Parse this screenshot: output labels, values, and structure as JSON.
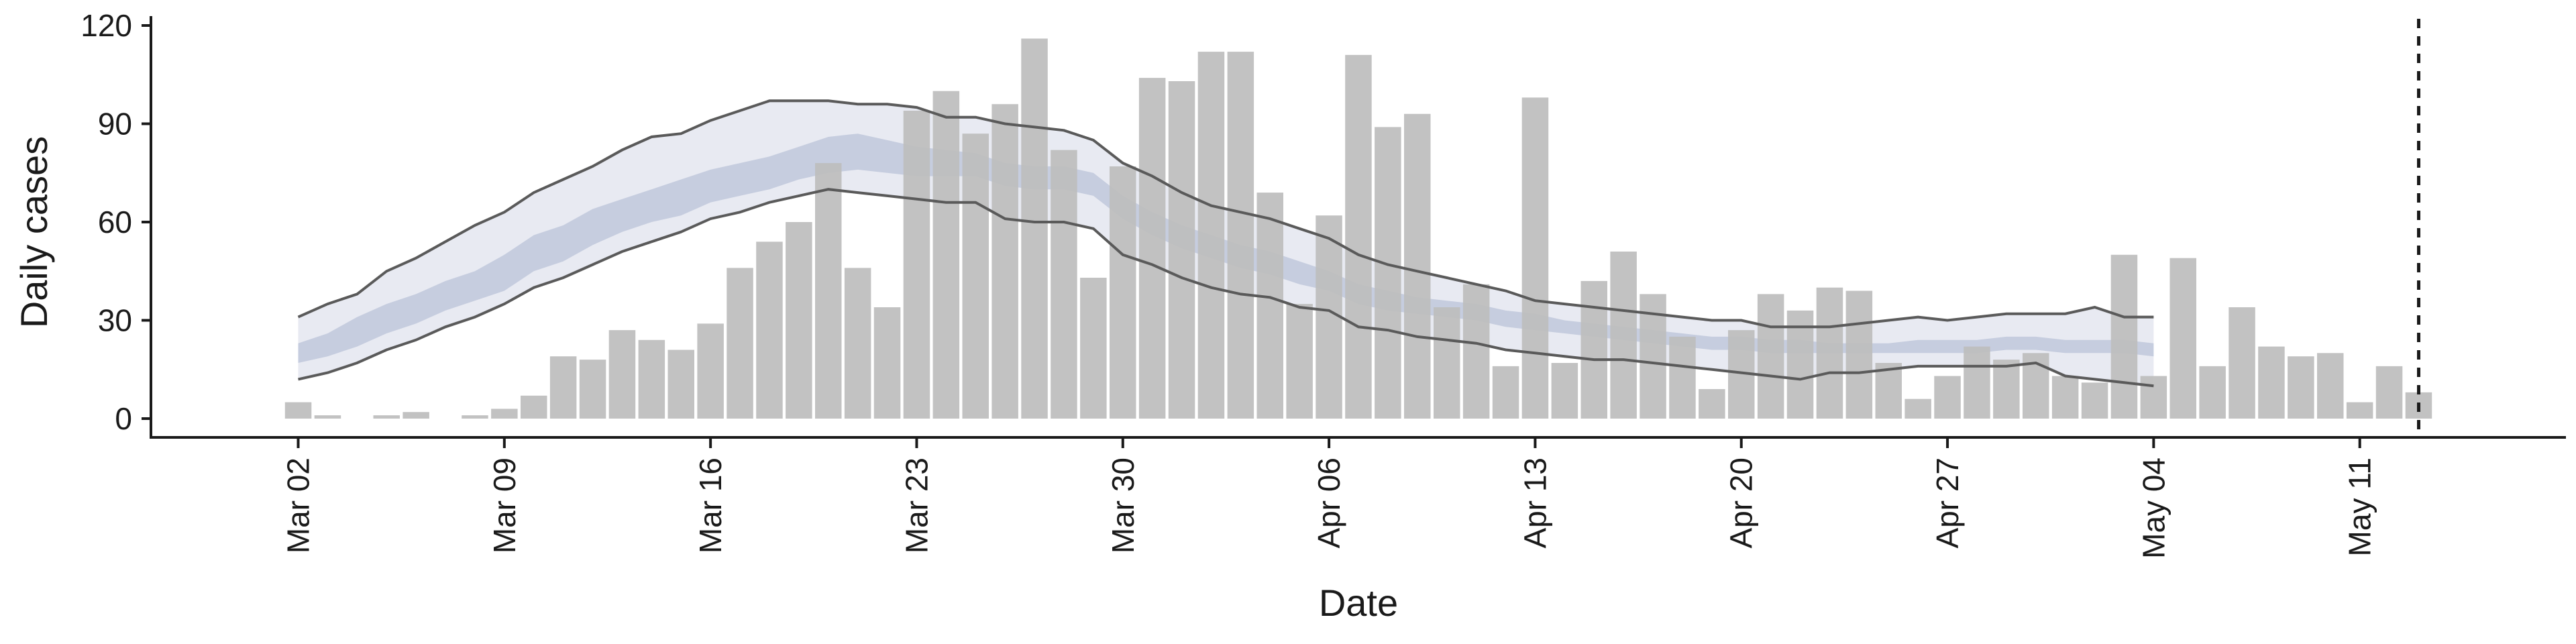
{
  "chart_data": {
    "type": "bar",
    "title": "",
    "xlabel": "Date",
    "ylabel": "Daily cases",
    "ylim": [
      0,
      120
    ],
    "y_ticks": [
      0,
      30,
      60,
      90,
      120
    ],
    "x_range": [
      "2020-02-26",
      "2020-05-18"
    ],
    "x_ticks": [
      {
        "date": "2020-03-02",
        "label": "Mar 02"
      },
      {
        "date": "2020-03-09",
        "label": "Mar 09"
      },
      {
        "date": "2020-03-16",
        "label": "Mar 16"
      },
      {
        "date": "2020-03-23",
        "label": "Mar 23"
      },
      {
        "date": "2020-03-30",
        "label": "Mar 30"
      },
      {
        "date": "2020-04-06",
        "label": "Apr 06"
      },
      {
        "date": "2020-04-13",
        "label": "Apr 13"
      },
      {
        "date": "2020-04-20",
        "label": "Apr 20"
      },
      {
        "date": "2020-04-27",
        "label": "Apr 27"
      },
      {
        "date": "2020-05-04",
        "label": "May 04"
      },
      {
        "date": "2020-05-11",
        "label": "May 11"
      }
    ],
    "grid": false,
    "vertical_reference_line": {
      "date": "2020-05-13",
      "style": "dashed"
    },
    "bars": {
      "dates": [
        "2020-03-02",
        "2020-03-03",
        "2020-03-04",
        "2020-03-05",
        "2020-03-06",
        "2020-03-07",
        "2020-03-08",
        "2020-03-09",
        "2020-03-10",
        "2020-03-11",
        "2020-03-12",
        "2020-03-13",
        "2020-03-14",
        "2020-03-15",
        "2020-03-16",
        "2020-03-17",
        "2020-03-18",
        "2020-03-19",
        "2020-03-20",
        "2020-03-21",
        "2020-03-22",
        "2020-03-23",
        "2020-03-24",
        "2020-03-25",
        "2020-03-26",
        "2020-03-27",
        "2020-03-28",
        "2020-03-29",
        "2020-03-30",
        "2020-03-31",
        "2020-04-01",
        "2020-04-02",
        "2020-04-03",
        "2020-04-04",
        "2020-04-05",
        "2020-04-06",
        "2020-04-07",
        "2020-04-08",
        "2020-04-09",
        "2020-04-10",
        "2020-04-11",
        "2020-04-12",
        "2020-04-13",
        "2020-04-14",
        "2020-04-15",
        "2020-04-16",
        "2020-04-17",
        "2020-04-18",
        "2020-04-19",
        "2020-04-20",
        "2020-04-21",
        "2020-04-22",
        "2020-04-23",
        "2020-04-24",
        "2020-04-25",
        "2020-04-26",
        "2020-04-27",
        "2020-04-28",
        "2020-04-29",
        "2020-04-30",
        "2020-05-01",
        "2020-05-02",
        "2020-05-03",
        "2020-05-04",
        "2020-05-05",
        "2020-05-06",
        "2020-05-07",
        "2020-05-08",
        "2020-05-09",
        "2020-05-10",
        "2020-05-11",
        "2020-05-12",
        "2020-05-13"
      ],
      "values": [
        5,
        1,
        0,
        1,
        2,
        0,
        1,
        3,
        7,
        19,
        18,
        27,
        24,
        21,
        29,
        46,
        54,
        60,
        78,
        46,
        34,
        94,
        100,
        87,
        96,
        116,
        82,
        43,
        77,
        104,
        103,
        112,
        112,
        69,
        35,
        62,
        111,
        89,
        93,
        34,
        41,
        16,
        98,
        17,
        42,
        51,
        38,
        25,
        9,
        27,
        38,
        33,
        40,
        39,
        17,
        6,
        13,
        22,
        18,
        20,
        13,
        11,
        50,
        13,
        49,
        16,
        34,
        22,
        19,
        20,
        5,
        16,
        8
      ],
      "color": "#bdbdbd"
    },
    "bands": {
      "dates": [
        "2020-03-02",
        "2020-03-03",
        "2020-03-04",
        "2020-03-05",
        "2020-03-06",
        "2020-03-07",
        "2020-03-08",
        "2020-03-09",
        "2020-03-10",
        "2020-03-11",
        "2020-03-12",
        "2020-03-13",
        "2020-03-14",
        "2020-03-15",
        "2020-03-16",
        "2020-03-17",
        "2020-03-18",
        "2020-03-19",
        "2020-03-20",
        "2020-03-21",
        "2020-03-22",
        "2020-03-23",
        "2020-03-24",
        "2020-03-25",
        "2020-03-26",
        "2020-03-27",
        "2020-03-28",
        "2020-03-29",
        "2020-03-30",
        "2020-03-31",
        "2020-04-01",
        "2020-04-02",
        "2020-04-03",
        "2020-04-04",
        "2020-04-05",
        "2020-04-06",
        "2020-04-07",
        "2020-04-08",
        "2020-04-09",
        "2020-04-10",
        "2020-04-11",
        "2020-04-12",
        "2020-04-13",
        "2020-04-14",
        "2020-04-15",
        "2020-04-16",
        "2020-04-17",
        "2020-04-18",
        "2020-04-19",
        "2020-04-20",
        "2020-04-21",
        "2020-04-22",
        "2020-04-23",
        "2020-04-24",
        "2020-04-25",
        "2020-04-26",
        "2020-04-27",
        "2020-04-28",
        "2020-04-29",
        "2020-04-30",
        "2020-05-01",
        "2020-05-02",
        "2020-05-03",
        "2020-05-04"
      ],
      "outer_upper": [
        31,
        35,
        38,
        45,
        49,
        54,
        59,
        63,
        69,
        73,
        77,
        82,
        86,
        87,
        91,
        94,
        97,
        97,
        97,
        96,
        96,
        95,
        92,
        92,
        90,
        89,
        88,
        85,
        78,
        74,
        69,
        65,
        63,
        61,
        58,
        55,
        50,
        47,
        45,
        43,
        41,
        39,
        36,
        35,
        34,
        33,
        32,
        31,
        30,
        30,
        28,
        28,
        28,
        29,
        30,
        31,
        30,
        31,
        32,
        32,
        32,
        34,
        31,
        31
      ],
      "inner_upper": [
        23,
        26,
        31,
        35,
        38,
        42,
        45,
        50,
        56,
        59,
        64,
        67,
        70,
        73,
        76,
        78,
        80,
        83,
        86,
        87,
        85,
        83,
        82,
        81,
        78,
        77,
        77,
        75,
        68,
        63,
        59,
        56,
        53,
        51,
        48,
        45,
        41,
        39,
        37,
        36,
        35,
        33,
        32,
        30,
        29,
        28,
        27,
        26,
        25,
        25,
        24,
        24,
        23,
        23,
        23,
        24,
        24,
        24,
        25,
        25,
        24,
        24,
        24,
        23
      ],
      "inner_lower": [
        17,
        19,
        22,
        26,
        29,
        33,
        36,
        39,
        45,
        48,
        53,
        57,
        60,
        62,
        66,
        68,
        70,
        73,
        75,
        76,
        75,
        74,
        74,
        74,
        71,
        70,
        70,
        68,
        61,
        56,
        52,
        49,
        46,
        44,
        41,
        39,
        35,
        33,
        32,
        31,
        30,
        28,
        27,
        26,
        25,
        24,
        23,
        22,
        21,
        21,
        20,
        20,
        20,
        20,
        20,
        20,
        20,
        20,
        21,
        21,
        20,
        20,
        20,
        19
      ],
      "outer_lower": [
        12,
        14,
        17,
        21,
        24,
        28,
        31,
        35,
        40,
        43,
        47,
        51,
        54,
        57,
        61,
        63,
        66,
        68,
        70,
        69,
        68,
        67,
        66,
        66,
        61,
        60,
        60,
        58,
        50,
        47,
        43,
        40,
        38,
        37,
        34,
        33,
        28,
        27,
        25,
        24,
        23,
        21,
        20,
        19,
        18,
        18,
        17,
        16,
        15,
        14,
        13,
        12,
        14,
        14,
        15,
        16,
        16,
        16,
        16,
        17,
        13,
        12,
        11,
        10
      ],
      "outer_color": "#e8eaf2",
      "inner_color": "#c4cbdd",
      "outline_color": "#5a5a5a"
    }
  }
}
